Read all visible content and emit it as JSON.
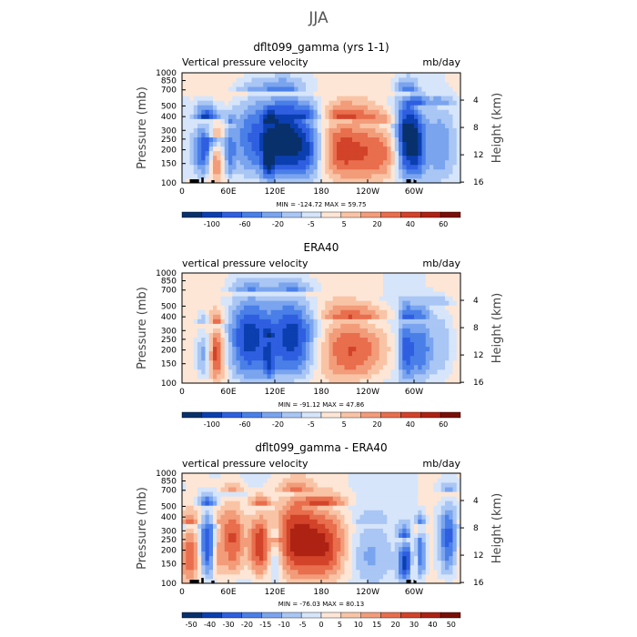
{
  "page": {
    "suptitle": "JJA"
  },
  "colormaps": {
    "main": [
      "#08306b",
      "#0b3fb0",
      "#2f5fe0",
      "#4a7fe8",
      "#7aa4ee",
      "#a9c6f4",
      "#d6e5fa",
      "#fde6d6",
      "#f9c4a6",
      "#f29c7a",
      "#e86e4d",
      "#d2432a",
      "#ad2213",
      "#7a0f08"
    ],
    "diff": [
      "#08306b",
      "#0b3fb0",
      "#2f5fe0",
      "#4a7fe8",
      "#7aa4ee",
      "#a9c6f4",
      "#d6e5fa",
      "#fde6d6",
      "#f9c4a6",
      "#f29c7a",
      "#e86e4d",
      "#d2432a",
      "#ad2213",
      "#7a0f08"
    ]
  },
  "chart_data": [
    {
      "type": "heatmap",
      "title": "dflt099_gamma (yrs 1-1)",
      "subtitle_left": "Vertical pressure velocity",
      "subtitle_right": "mb/day",
      "ylabel": "Pressure (mb)",
      "ylabel_right": "Height (km)",
      "xticks": [
        "0",
        "60E",
        "120E",
        "180",
        "120W",
        "60W"
      ],
      "x_tick_values": [
        0,
        60,
        120,
        180,
        240,
        300
      ],
      "xlim": [
        0,
        360
      ],
      "yticks": [
        "100",
        "150",
        "200",
        "250",
        "300",
        "400",
        "500",
        "700",
        "850",
        "1000"
      ],
      "y_tick_values": [
        100,
        150,
        200,
        250,
        300,
        400,
        500,
        700,
        850,
        1000
      ],
      "ylim": [
        1000,
        100
      ],
      "right_ticks": [
        "16",
        "12",
        "8",
        "4"
      ],
      "right_tick_values": [
        16,
        12,
        8,
        4
      ],
      "stats": "MIN = -124.72   MAX =  59.75",
      "colorbar_labels": [
        "-100",
        "-60",
        "-20",
        "-5",
        "5",
        "20",
        "40",
        "60"
      ],
      "features": [
        {
          "lon": 32,
          "width": 12,
          "amp": -0.95,
          "top": 250
        },
        {
          "lon": 42,
          "width": 7,
          "amp": 0.85,
          "top": 400
        },
        {
          "lon": 62,
          "width": 5,
          "amp": -0.45,
          "top": 300
        },
        {
          "lon": 85,
          "width": 18,
          "amp": -0.55,
          "top": 150
        },
        {
          "lon": 112,
          "width": 5,
          "amp": -0.6,
          "top": 300
        },
        {
          "lon": 130,
          "width": 20,
          "amp": -0.9,
          "top": 150
        },
        {
          "lon": 165,
          "width": 15,
          "amp": -0.7,
          "top": 250
        },
        {
          "lon": 205,
          "width": 28,
          "amp": 0.6,
          "top": 250
        },
        {
          "lon": 260,
          "width": 20,
          "amp": 0.4,
          "top": 300
        },
        {
          "lon": 290,
          "width": 10,
          "amp": -1.0,
          "top": 150
        },
        {
          "lon": 305,
          "width": 8,
          "amp": -0.5,
          "top": 200
        },
        {
          "lon": 335,
          "width": 14,
          "amp": -0.35,
          "top": 200
        }
      ]
    },
    {
      "type": "heatmap",
      "title": "ERA40",
      "subtitle_left": "vertical pressure velocity",
      "subtitle_right": "mb/day",
      "ylabel": "Pressure (mb)",
      "ylabel_right": "Height (km)",
      "xticks": [
        "0",
        "60E",
        "120E",
        "180",
        "120W",
        "60W"
      ],
      "x_tick_values": [
        0,
        60,
        120,
        180,
        240,
        300
      ],
      "xlim": [
        0,
        360
      ],
      "yticks": [
        "100",
        "150",
        "200",
        "250",
        "300",
        "400",
        "500",
        "700",
        "850",
        "1000"
      ],
      "y_tick_values": [
        100,
        150,
        200,
        250,
        300,
        400,
        500,
        700,
        850,
        1000
      ],
      "ylim": [
        1000,
        100
      ],
      "right_ticks": [
        "16",
        "12",
        "8",
        "4"
      ],
      "right_tick_values": [
        16,
        12,
        8,
        4
      ],
      "stats": "MIN = -91.12   MAX =  47.86",
      "colorbar_labels": [
        "-100",
        "-60",
        "-20",
        "-5",
        "5",
        "20",
        "40",
        "60"
      ],
      "features": [
        {
          "lon": 30,
          "width": 8,
          "amp": -0.6,
          "top": 300
        },
        {
          "lon": 43,
          "width": 8,
          "amp": 0.8,
          "top": 300
        },
        {
          "lon": 85,
          "width": 18,
          "amp": -0.75,
          "top": 150
        },
        {
          "lon": 112,
          "width": 5,
          "amp": -0.4,
          "top": 400
        },
        {
          "lon": 145,
          "width": 22,
          "amp": -0.85,
          "top": 150
        },
        {
          "lon": 225,
          "width": 35,
          "amp": 0.55,
          "top": 250
        },
        {
          "lon": 290,
          "width": 8,
          "amp": -0.7,
          "top": 250
        },
        {
          "lon": 310,
          "width": 8,
          "amp": -0.5,
          "top": 250
        },
        {
          "lon": 335,
          "width": 12,
          "amp": -0.3,
          "top": 200
        }
      ]
    },
    {
      "type": "heatmap",
      "title": "dflt099_gamma - ERA40",
      "subtitle_left": "vertical pressure velocity",
      "subtitle_right": "mb/day",
      "ylabel": "Pressure (mb)",
      "ylabel_right": "Height (km)",
      "xticks": [
        "0",
        "60E",
        "120E",
        "180",
        "120W",
        "60W"
      ],
      "x_tick_values": [
        0,
        60,
        120,
        180,
        240,
        300
      ],
      "xlim": [
        0,
        360
      ],
      "yticks": [
        "100",
        "150",
        "200",
        "250",
        "300",
        "400",
        "500",
        "700",
        "850",
        "1000"
      ],
      "y_tick_values": [
        100,
        150,
        200,
        250,
        300,
        400,
        500,
        700,
        850,
        1000
      ],
      "ylim": [
        1000,
        100
      ],
      "right_ticks": [
        "16",
        "12",
        "8",
        "4"
      ],
      "right_tick_values": [
        16,
        12,
        8,
        4
      ],
      "stats": "MIN = -76.03   MAX =  80.13",
      "colorbar_labels": [
        "-50",
        "-40",
        "-30",
        "-20",
        "-15",
        "-10",
        "-5",
        "0",
        "5",
        "10",
        "15",
        "20",
        "30",
        "40",
        "50"
      ],
      "features": [
        {
          "lon": 10,
          "width": 10,
          "amp": 0.6,
          "top": 300
        },
        {
          "lon": 33,
          "width": 8,
          "amp": -0.8,
          "top": 200
        },
        {
          "lon": 45,
          "width": 5,
          "amp": 0.4,
          "top": 300
        },
        {
          "lon": 65,
          "width": 12,
          "amp": 0.75,
          "top": 150
        },
        {
          "lon": 100,
          "width": 10,
          "amp": 0.8,
          "top": 200
        },
        {
          "lon": 120,
          "width": 6,
          "amp": -0.4,
          "top": 400
        },
        {
          "lon": 145,
          "width": 18,
          "amp": 0.7,
          "top": 150
        },
        {
          "lon": 185,
          "width": 20,
          "amp": 0.65,
          "top": 200
        },
        {
          "lon": 240,
          "width": 15,
          "amp": -0.25,
          "top": 300
        },
        {
          "lon": 290,
          "width": 7,
          "amp": -0.9,
          "top": 400
        },
        {
          "lon": 300,
          "width": 5,
          "amp": 0.5,
          "top": 400
        },
        {
          "lon": 308,
          "width": 5,
          "amp": -0.7,
          "top": 300
        },
        {
          "lon": 345,
          "width": 10,
          "amp": -0.8,
          "top": 150
        }
      ]
    }
  ]
}
